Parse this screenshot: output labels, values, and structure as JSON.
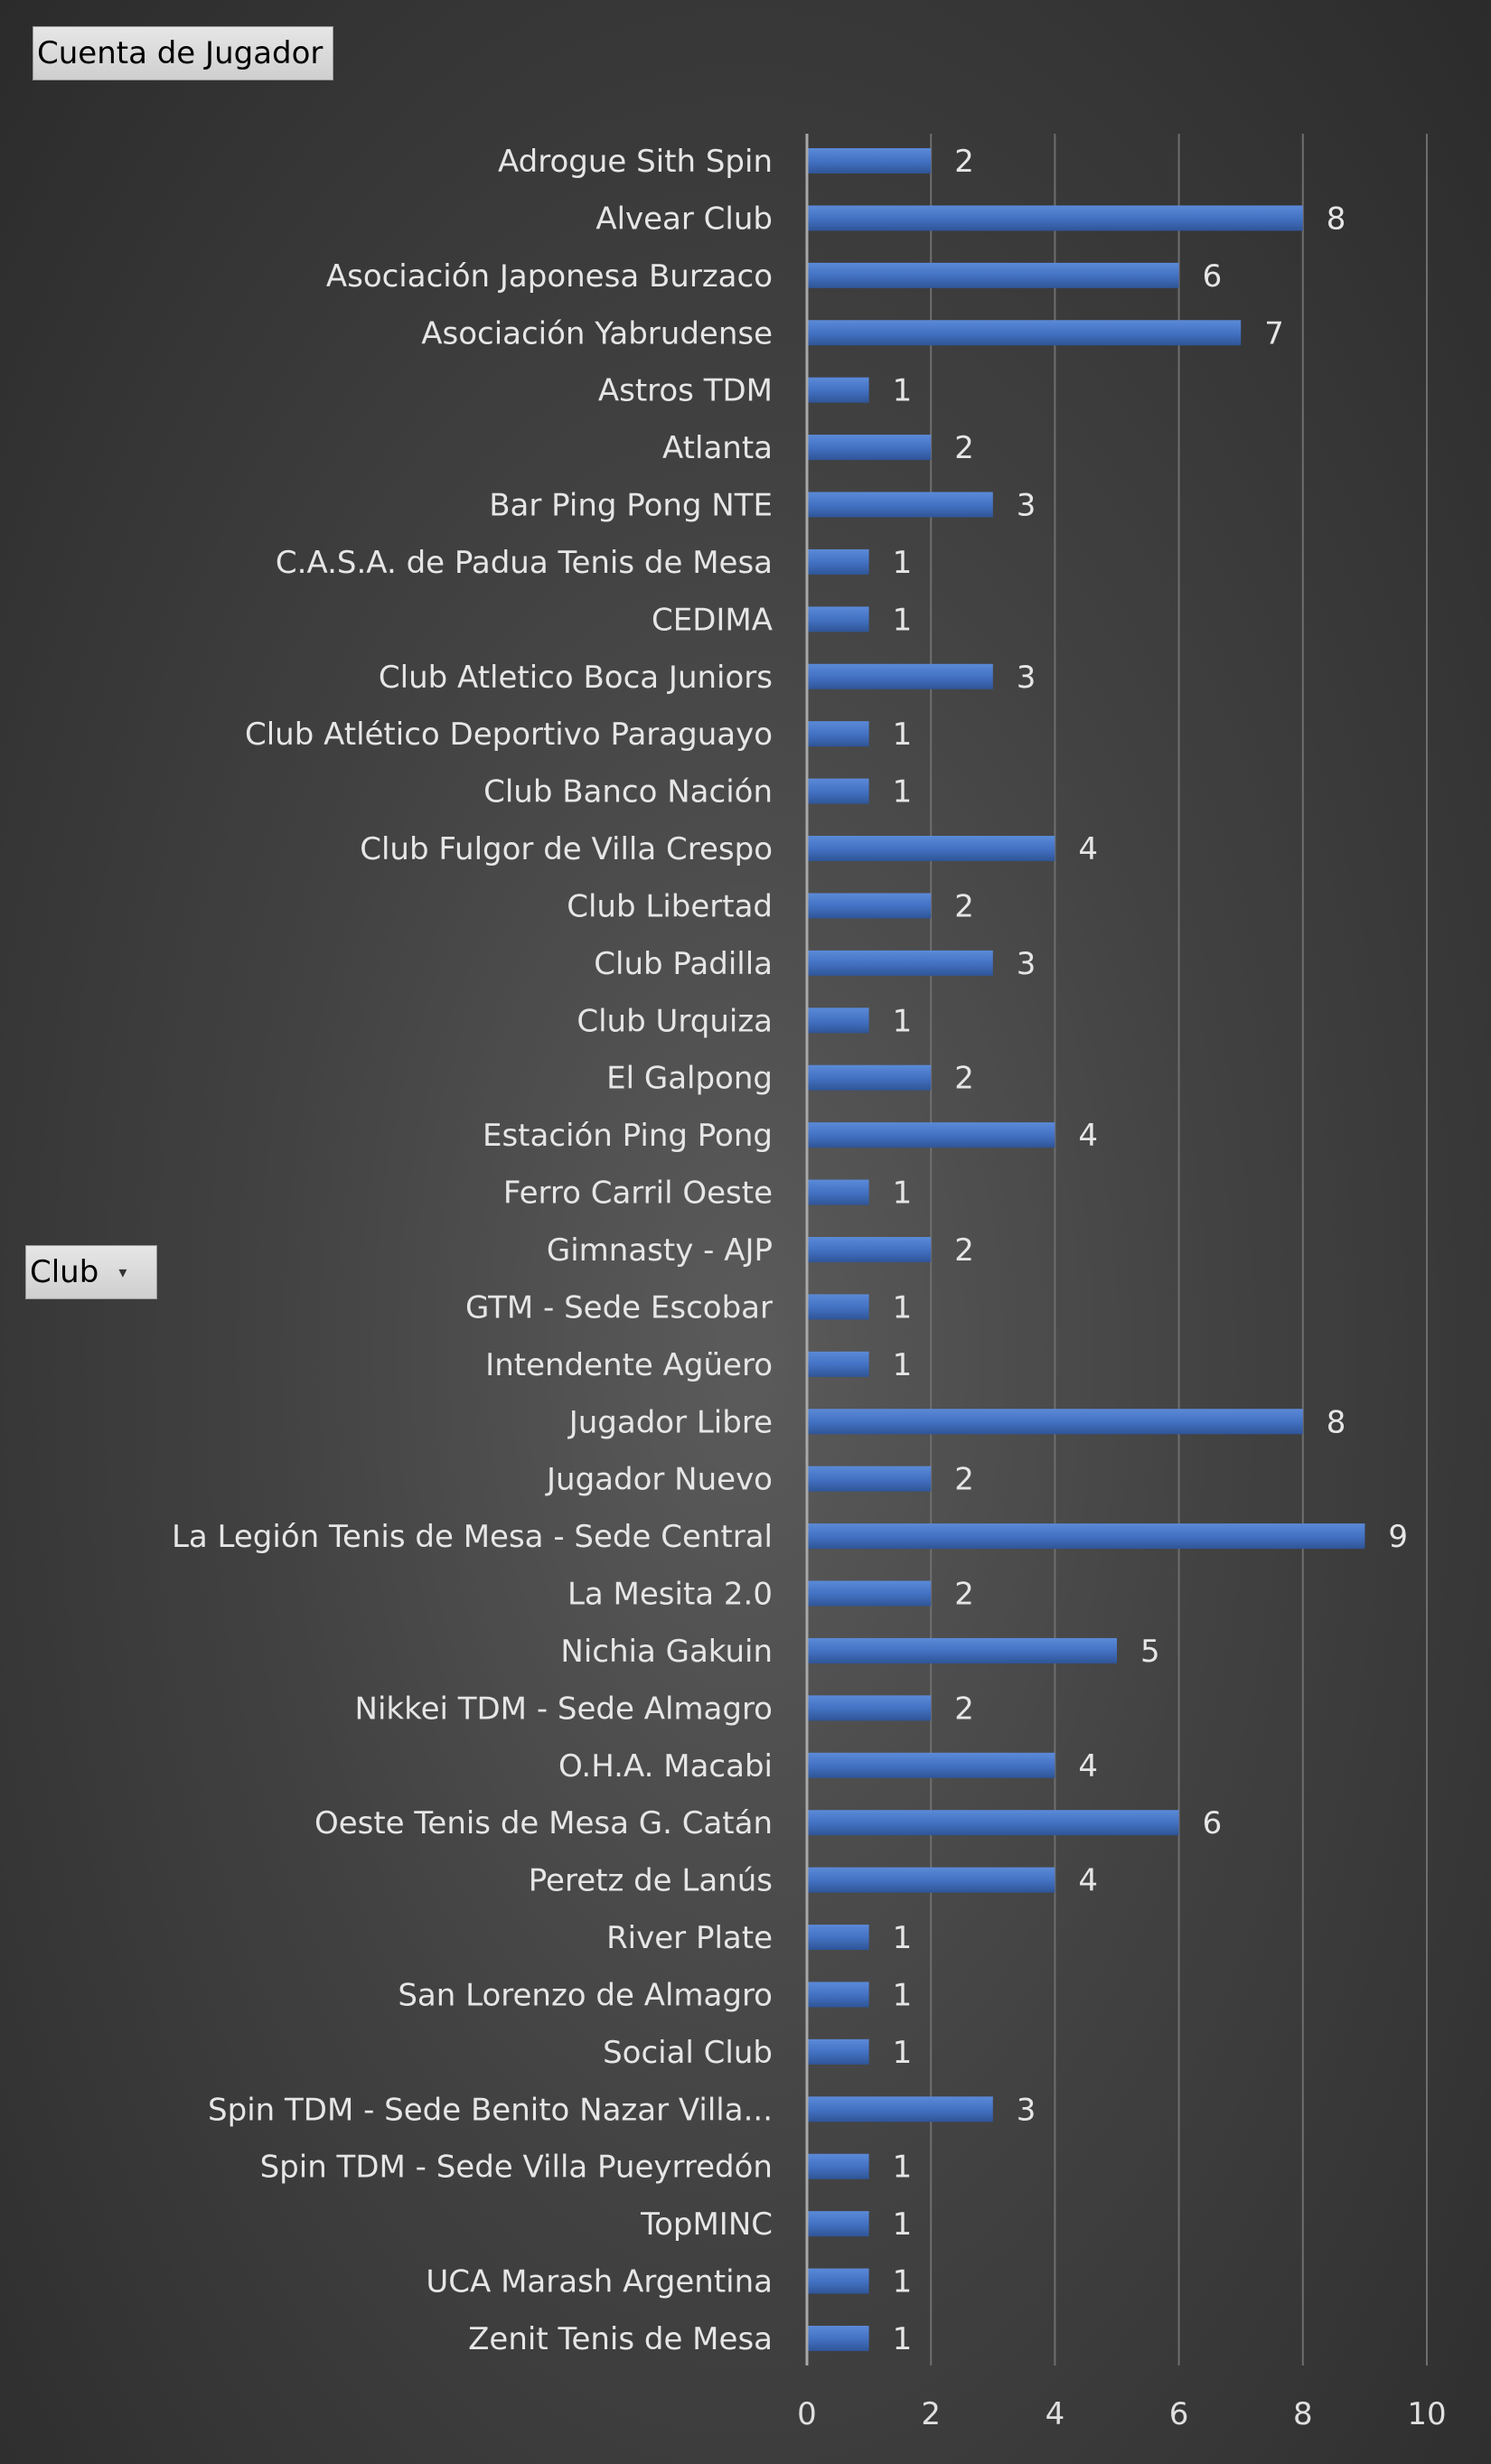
{
  "pivot": {
    "value_field": "Cuenta de Jugador",
    "axis_field": "Club"
  },
  "colors": {
    "bar": "#4472c4",
    "bar_dark": "#2f5597",
    "gridline": "#6e6e6e",
    "axis": "#a8a8a8"
  },
  "chart_data": {
    "type": "bar",
    "orientation": "horizontal",
    "title": "",
    "xlabel": "",
    "ylabel": "",
    "xlim": [
      0,
      10
    ],
    "xticks": [
      0,
      2,
      4,
      6,
      8,
      10
    ],
    "grid": true,
    "legend": "none",
    "data_labels": true,
    "categories": [
      "Adrogue Sith Spin",
      "Alvear Club",
      "Asociación Japonesa Burzaco",
      "Asociación Yabrudense",
      "Astros TDM",
      "Atlanta",
      "Bar Ping Pong NTE",
      "C.A.S.A. de Padua Tenis de Mesa",
      "CEDIMA",
      "Club Atletico Boca Juniors",
      "Club Atlético Deportivo Paraguayo",
      "Club Banco Nación",
      "Club Fulgor de Villa Crespo",
      "Club Libertad",
      "Club Padilla",
      "Club Urquiza",
      "El Galpong",
      "Estación Ping Pong",
      "Ferro Carril Oeste",
      "Gimnasty - AJP",
      "GTM - Sede Escobar",
      "Intendente Agüero",
      "Jugador Libre",
      "Jugador Nuevo",
      "La Legión Tenis de Mesa - Sede Central",
      "La Mesita 2.0",
      "Nichia Gakuin",
      "Nikkei TDM - Sede Almagro",
      "O.H.A. Macabi",
      "Oeste Tenis de Mesa G. Catán",
      "Peretz de Lanús",
      "River Plate",
      "San Lorenzo de Almagro",
      "Social Club",
      "Spin TDM - Sede Benito Nazar Villa...",
      "Spin TDM - Sede Villa Pueyrredón",
      "TopMINC",
      "UCA Marash Argentina",
      "Zenit Tenis de Mesa"
    ],
    "values": [
      2,
      8,
      6,
      7,
      1,
      2,
      3,
      1,
      1,
      3,
      1,
      1,
      4,
      2,
      3,
      1,
      2,
      4,
      1,
      2,
      1,
      1,
      8,
      2,
      9,
      2,
      5,
      2,
      4,
      6,
      4,
      1,
      1,
      1,
      3,
      1,
      1,
      1,
      1
    ]
  }
}
